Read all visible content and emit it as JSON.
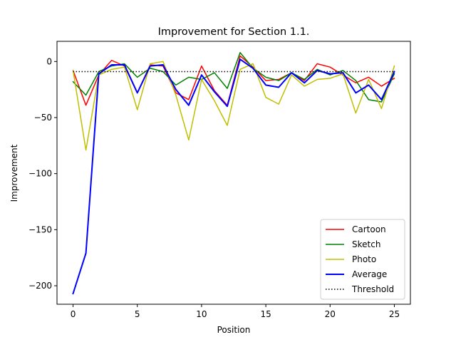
{
  "chart_data": {
    "type": "line",
    "title": "Improvement for Section 1.1.",
    "xlabel": "Position",
    "ylabel": "Improvement",
    "xlim": [
      -1.25,
      26.25
    ],
    "ylim": [
      -216.5,
      18.0
    ],
    "xticks": [
      0,
      5,
      10,
      15,
      20,
      25
    ],
    "yticks": [
      0,
      -50,
      -100,
      -150,
      -200
    ],
    "tick_labels_x": [
      "0",
      "5",
      "10",
      "15",
      "20",
      "25"
    ],
    "tick_labels_y": [
      "0",
      "−50",
      "−100",
      "−150",
      "−200"
    ],
    "grid": false,
    "legend_position": "lower-right",
    "x": [
      0,
      1,
      2,
      3,
      4,
      5,
      6,
      7,
      8,
      9,
      10,
      11,
      12,
      13,
      14,
      15,
      16,
      17,
      18,
      19,
      20,
      21,
      22,
      23,
      24,
      25
    ],
    "series": [
      {
        "name": "Cartoon",
        "color": "#ff0000",
        "style": "solid",
        "values": [
          -8,
          -39,
          -12,
          1,
          -4,
          -28,
          -3,
          -4,
          -28,
          -34,
          -4,
          -26,
          -39,
          5,
          -5,
          -17,
          -16,
          -10,
          -17,
          -2,
          -5,
          -12,
          -19,
          -14,
          -22,
          -15
        ]
      },
      {
        "name": "Sketch",
        "color": "#008000",
        "style": "solid",
        "values": [
          -18,
          -30,
          -9,
          -4,
          -2,
          -14,
          -6,
          -9,
          -21,
          -14,
          -16,
          -10,
          -24,
          8,
          -6,
          -14,
          -17,
          -10,
          -16,
          -7,
          -12,
          -8,
          -17,
          -34,
          -36,
          -11
        ]
      },
      {
        "name": "Photo",
        "color": "#bfbf00",
        "style": "solid",
        "values": [
          -8,
          -79,
          -12,
          -7,
          -5,
          -43,
          -2,
          0,
          -30,
          -70,
          -16,
          -35,
          -57,
          -7,
          -2,
          -32,
          -38,
          -12,
          -22,
          -16,
          -15,
          -11,
          -46,
          -16,
          -42,
          -4
        ]
      },
      {
        "name": "Average",
        "color": "#0000ff",
        "style": "solid",
        "values": [
          -207,
          -171,
          -11,
          -3,
          -3,
          -28,
          -4,
          -3,
          -25,
          -39,
          -12,
          -27,
          -40,
          2,
          -6,
          -21,
          -23,
          -10,
          -19,
          -8,
          -11,
          -10,
          -28,
          -21,
          -34,
          -9
        ]
      },
      {
        "name": "Threshold",
        "color": "#000000",
        "style": "dotted",
        "values": [
          -9,
          -9,
          -9,
          -9,
          -9,
          -9,
          -9,
          -9,
          -9,
          -9,
          -9,
          -9,
          -9,
          -9,
          -9,
          -9,
          -9,
          -9,
          -9,
          -9,
          -9,
          -9,
          -9,
          -9,
          -9,
          -9
        ]
      }
    ]
  }
}
